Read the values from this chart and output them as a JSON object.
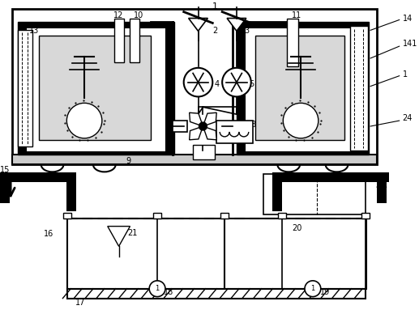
{
  "bg_color": "#ffffff",
  "figsize": [
    5.17,
    3.88
  ],
  "dpi": 100
}
